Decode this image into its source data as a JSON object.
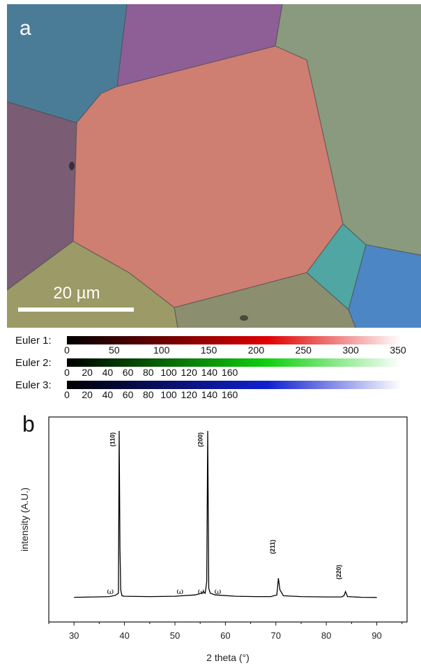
{
  "panel_a": {
    "label": "a",
    "scale_bar": "20 µm"
  },
  "euler_legend": [
    {
      "label": "Euler 1:",
      "color": "#e00000",
      "ticks": [
        "0",
        "50",
        "100",
        "150",
        "200",
        "250",
        "300",
        "350"
      ]
    },
    {
      "label": "Euler 2:",
      "color": "#10d010",
      "ticks": [
        "0",
        "20",
        "40",
        "60",
        "80",
        "100",
        "120",
        "140",
        "160"
      ]
    },
    {
      "label": "Euler 3:",
      "color": "#1020d0",
      "ticks": [
        "0",
        "20",
        "40",
        "60",
        "80",
        "100",
        "120",
        "140",
        "160"
      ]
    }
  ],
  "panel_b": {
    "label": "b",
    "xlabel": "2 theta (°)",
    "ylabel": "intensity (A.U.)",
    "peaks": [
      "(110)",
      "(200)",
      "(211)",
      "(220)"
    ],
    "omega_marks": [
      "ω",
      "ω",
      "ω",
      "ω"
    ]
  },
  "chart_data": {
    "type": "line",
    "title": "",
    "xlabel": "2 theta (°)",
    "ylabel": "intensity (A.U.)",
    "xlim": [
      25,
      96
    ],
    "x_ticks": [
      "30",
      "40",
      "50",
      "60",
      "70",
      "80",
      "90"
    ],
    "y_ticks": [],
    "grid": false,
    "series": [
      {
        "x": [
          30,
          34,
          37,
          38.2,
          38.8,
          38.95,
          39.1,
          39.25,
          39.5,
          40,
          45,
          50,
          54,
          55.3,
          55.6,
          56.0,
          56.3,
          56.5,
          56.7,
          57,
          58,
          62,
          66,
          69,
          70.2,
          70.5,
          70.8,
          71.5,
          75,
          80,
          83,
          83.5,
          83.8,
          84.2,
          87,
          90
        ],
        "y": [
          0.6,
          0.8,
          1.0,
          1.8,
          3.0,
          100,
          30,
          5.0,
          1.5,
          1.2,
          1.0,
          1.2,
          2.0,
          3.0,
          4.0,
          3.0,
          10.0,
          100,
          6.0,
          3.0,
          2.0,
          1.2,
          1.0,
          1.0,
          2.0,
          12.0,
          5.0,
          1.5,
          1.0,
          0.8,
          0.8,
          1.5,
          4.0,
          1.0,
          0.6,
          0.5
        ]
      }
    ],
    "annotations": [
      {
        "text": "(110)",
        "x": 38.9
      },
      {
        "text": "(200)",
        "x": 56.3
      },
      {
        "text": "(211)",
        "x": 70.6
      },
      {
        "text": "(220)",
        "x": 83.7
      },
      {
        "text": "ω",
        "x": 37.2
      },
      {
        "text": "ω",
        "x": 51.0
      },
      {
        "text": "ω",
        "x": 55.2
      },
      {
        "text": "ω",
        "x": 58.5
      }
    ]
  }
}
